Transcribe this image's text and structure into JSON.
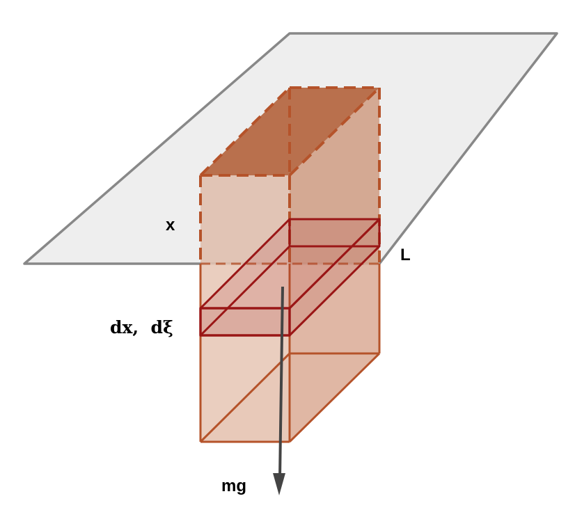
{
  "labels": {
    "x": "x",
    "L": "L",
    "slice": "dx,  dξ",
    "weight": "mg"
  },
  "colors": {
    "plane_fill": "#eeeeee",
    "plane_edge": "#888888",
    "block_edge": "#b5532a",
    "block_front": "#e8c9b8",
    "block_side": "#ddb09c",
    "block_top": "#b9704d",
    "slice_edge": "#9a1616",
    "arrow": "#444444"
  }
}
